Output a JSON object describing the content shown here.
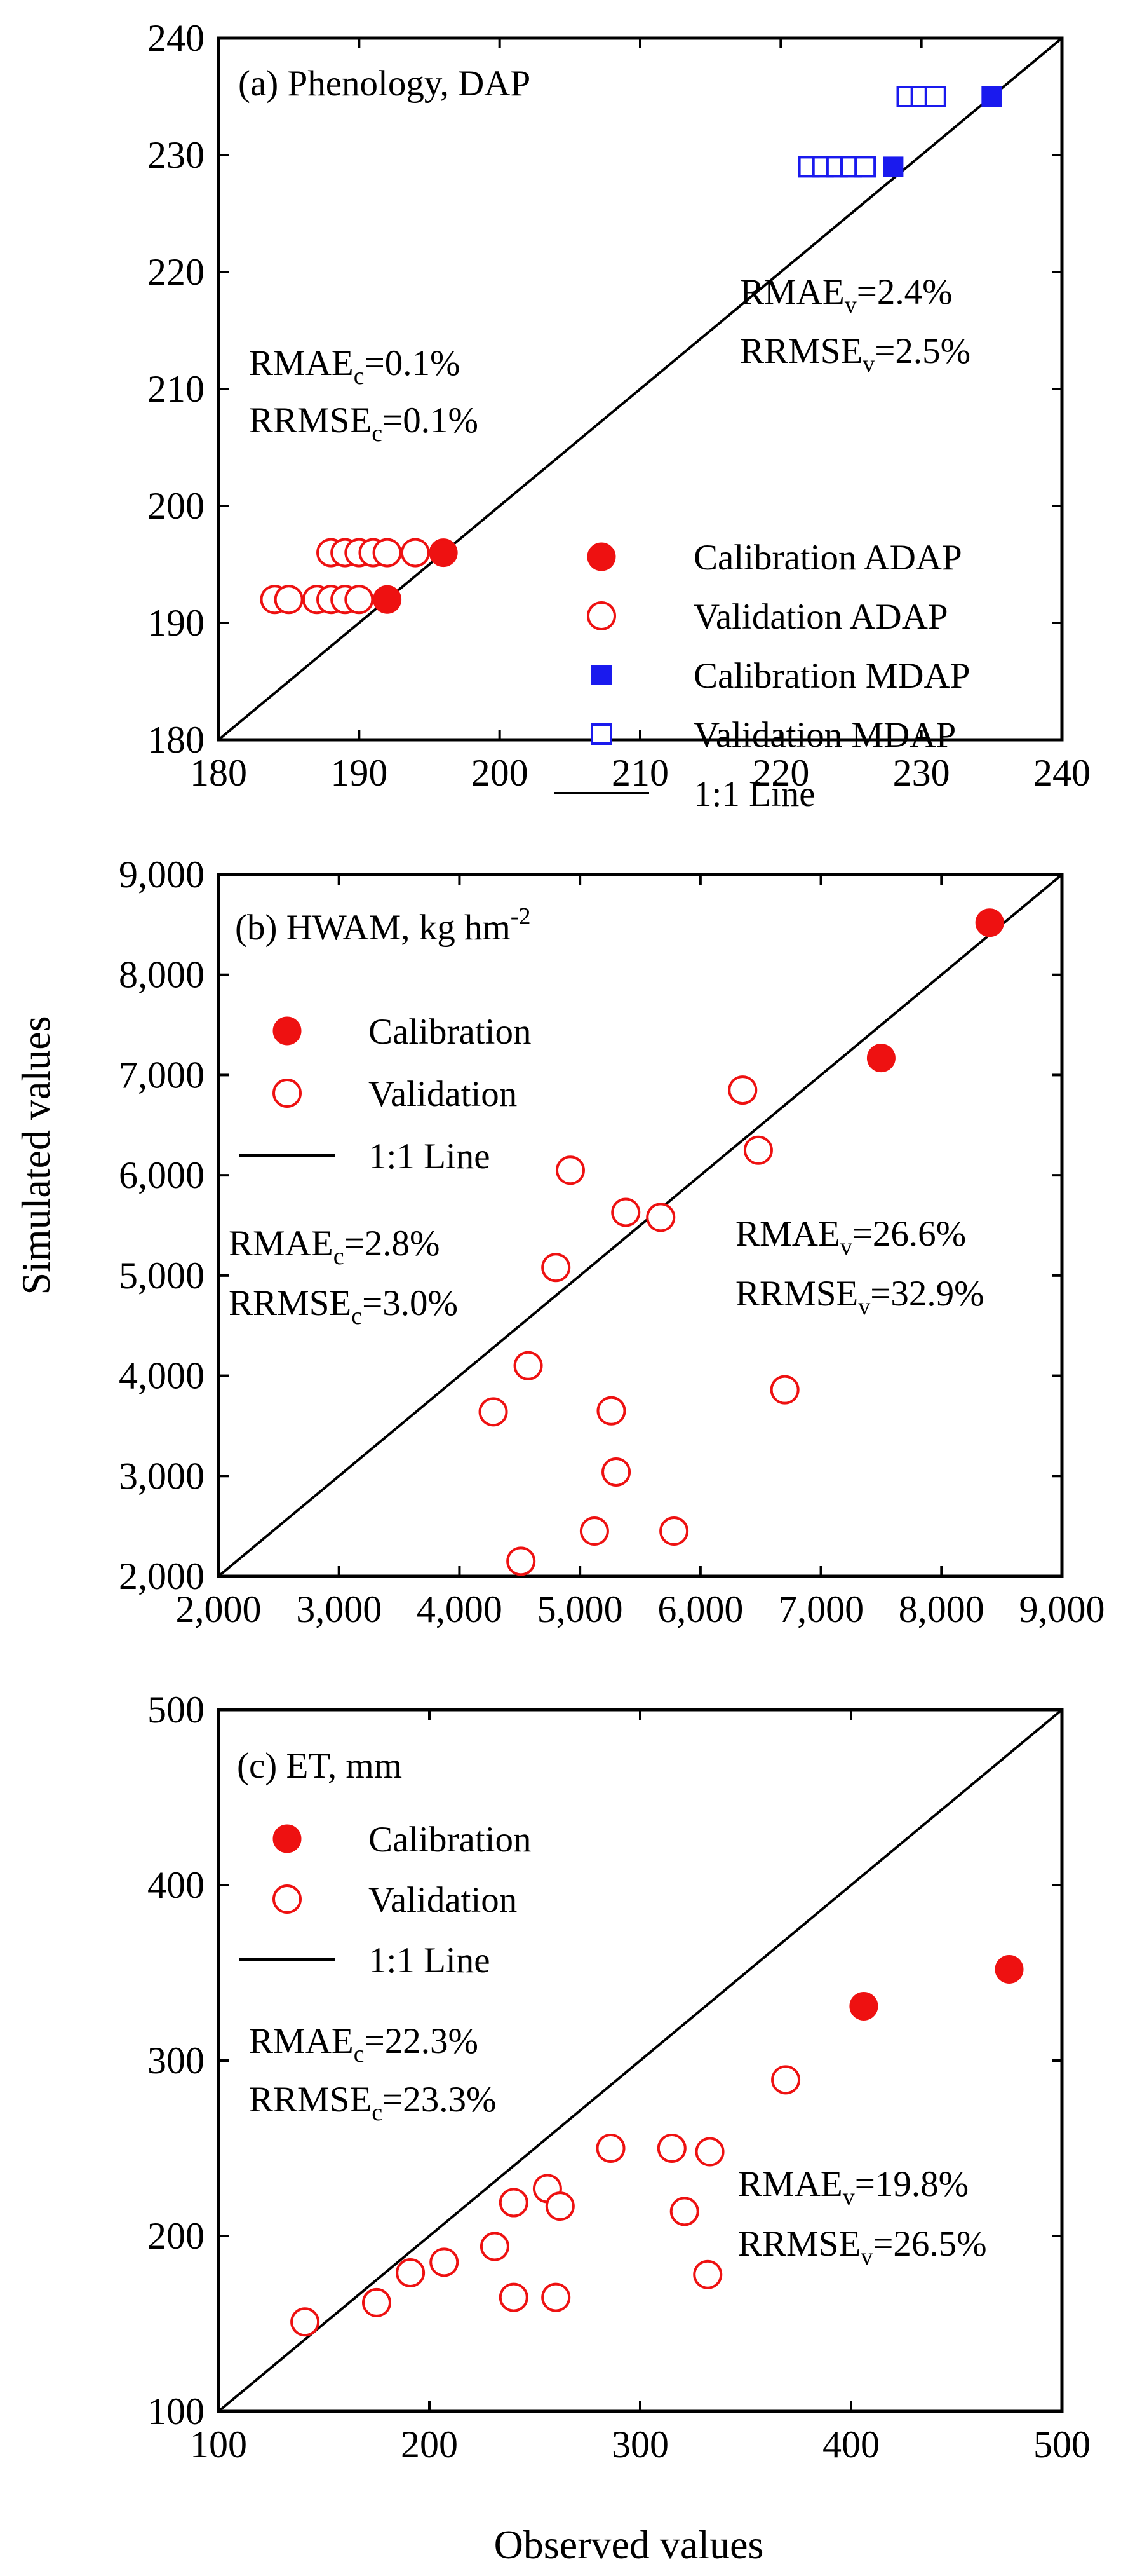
{
  "figure": {
    "ylabel_shared": "Simulated values",
    "xlabel_shared": "Observed values"
  },
  "colors": {
    "red": "#ee1111",
    "blue": "#1a1aee",
    "black": "#000000"
  },
  "chart_data": [
    {
      "type": "scatter",
      "panel": "a",
      "title_prefix": "(a) Phenology, DAP",
      "xlim": [
        180,
        240
      ],
      "ylim": [
        180,
        240
      ],
      "xticks": [
        "180",
        "190",
        "200",
        "210",
        "220",
        "230",
        "240"
      ],
      "yticks": [
        "180",
        "190",
        "200",
        "210",
        "220",
        "230",
        "240"
      ],
      "xtick_values": [
        180,
        190,
        200,
        210,
        220,
        230,
        240
      ],
      "ytick_values": [
        180,
        190,
        200,
        210,
        220,
        230,
        240
      ],
      "stats": {
        "calibration": [
          {
            "pre": "RMAE",
            "sub": "c",
            "post": "=0.1%"
          },
          {
            "pre": "RRMSE",
            "sub": "c",
            "post": "=0.1%"
          }
        ],
        "validation": [
          {
            "pre": "RMAE",
            "sub": "v",
            "post": "=2.4%"
          },
          {
            "pre": "RRMSE",
            "sub": "v",
            "post": "=2.5%"
          }
        ]
      },
      "legend": {
        "position": "bottom-right",
        "entries": [
          {
            "label": "Calibration ADAP",
            "marker": "filled-circle",
            "color": "#ee1111"
          },
          {
            "label": "Validation ADAP",
            "marker": "open-circle",
            "color": "#ee1111"
          },
          {
            "label": "Calibration MDAP",
            "marker": "filled-square",
            "color": "#1a1aee"
          },
          {
            "label": "Validation MDAP",
            "marker": "open-square",
            "color": "#1a1aee"
          },
          {
            "label": "1:1 Line",
            "marker": "line",
            "color": "#000000"
          }
        ]
      },
      "series": [
        {
          "name": "Calibration ADAP",
          "marker": "filled-circle",
          "color": "#ee1111",
          "points": [
            [
              196,
              196
            ],
            [
              192,
              192
            ]
          ]
        },
        {
          "name": "Validation ADAP",
          "marker": "open-circle",
          "color": "#ee1111",
          "points": [
            [
              188,
              196
            ],
            [
              189,
              196
            ],
            [
              190,
              196
            ],
            [
              191,
              196
            ],
            [
              192,
              196
            ],
            [
              194,
              196
            ],
            [
              184,
              192
            ],
            [
              185,
              192
            ],
            [
              187,
              192
            ],
            [
              188,
              192
            ],
            [
              189,
              192
            ],
            [
              190,
              192
            ]
          ]
        },
        {
          "name": "Calibration MDAP",
          "marker": "filled-square",
          "color": "#1a1aee",
          "points": [
            [
              235,
              235
            ],
            [
              228,
              229
            ]
          ]
        },
        {
          "name": "Validation MDAP",
          "marker": "open-square",
          "color": "#1a1aee",
          "points": [
            [
              229,
              235
            ],
            [
              230,
              235
            ],
            [
              231,
              235
            ],
            [
              222,
              229
            ],
            [
              223,
              229
            ],
            [
              224,
              229
            ],
            [
              225,
              229
            ],
            [
              226,
              229
            ]
          ]
        }
      ]
    },
    {
      "type": "scatter",
      "panel": "b",
      "title_prefix": "(b) HWAM, kg hm",
      "title_sup": "-2",
      "xlim": [
        2000,
        9000
      ],
      "ylim": [
        2000,
        9000
      ],
      "xticks": [
        "2,000",
        "3,000",
        "4,000",
        "5,000",
        "6,000",
        "7,000",
        "8,000",
        "9,000"
      ],
      "yticks": [
        "2,000",
        "3,000",
        "4,000",
        "5,000",
        "6,000",
        "7,000",
        "8,000",
        "9,000"
      ],
      "xtick_values": [
        2000,
        3000,
        4000,
        5000,
        6000,
        7000,
        8000,
        9000
      ],
      "ytick_values": [
        2000,
        3000,
        4000,
        5000,
        6000,
        7000,
        8000,
        9000
      ],
      "stats": {
        "calibration": [
          {
            "pre": "RMAE",
            "sub": "c",
            "post": "=2.8%"
          },
          {
            "pre": "RRMSE",
            "sub": "c",
            "post": "=3.0%"
          }
        ],
        "validation": [
          {
            "pre": "RMAE",
            "sub": "v",
            "post": "=26.6%"
          },
          {
            "pre": "RRMSE",
            "sub": "v",
            "post": "=32.9%"
          }
        ]
      },
      "legend": {
        "position": "top-left",
        "entries": [
          {
            "label": "Calibration",
            "marker": "filled-circle",
            "color": "#ee1111"
          },
          {
            "label": "Validation",
            "marker": "open-circle",
            "color": "#ee1111"
          },
          {
            "label": "1:1 Line",
            "marker": "line",
            "color": "#000000"
          }
        ]
      },
      "series": [
        {
          "name": "Calibration",
          "marker": "filled-circle",
          "color": "#ee1111",
          "points": [
            [
              8400,
              8520
            ],
            [
              7500,
              7170
            ]
          ]
        },
        {
          "name": "Validation",
          "marker": "open-circle",
          "color": "#ee1111",
          "points": [
            [
              6350,
              6850
            ],
            [
              6480,
              6250
            ],
            [
              4920,
              6050
            ],
            [
              5380,
              5630
            ],
            [
              5670,
              5580
            ],
            [
              4800,
              5080
            ],
            [
              4570,
              4100
            ],
            [
              4280,
              3640
            ],
            [
              5260,
              3650
            ],
            [
              6700,
              3860
            ],
            [
              5300,
              3040
            ],
            [
              5120,
              2450
            ],
            [
              5780,
              2450
            ],
            [
              4510,
              2150
            ]
          ]
        }
      ]
    },
    {
      "type": "scatter",
      "panel": "c",
      "title_prefix": "(c) ET, mm",
      "xlim": [
        100,
        500
      ],
      "ylim": [
        100,
        500
      ],
      "xticks": [
        "100",
        "200",
        "300",
        "400",
        "500"
      ],
      "yticks": [
        "100",
        "200",
        "300",
        "400",
        "500"
      ],
      "xtick_values": [
        100,
        200,
        300,
        400,
        500
      ],
      "ytick_values": [
        100,
        200,
        300,
        400,
        500
      ],
      "stats": {
        "calibration": [
          {
            "pre": "RMAE",
            "sub": "c",
            "post": "=22.3%"
          },
          {
            "pre": "RRMSE",
            "sub": "c",
            "post": "=23.3%"
          }
        ],
        "validation": [
          {
            "pre": "RMAE",
            "sub": "v",
            "post": "=19.8%"
          },
          {
            "pre": "RRMSE",
            "sub": "v",
            "post": "=26.5%"
          }
        ]
      },
      "legend": {
        "position": "top-left",
        "entries": [
          {
            "label": "Calibration",
            "marker": "filled-circle",
            "color": "#ee1111"
          },
          {
            "label": "Validation",
            "marker": "open-circle",
            "color": "#ee1111"
          },
          {
            "label": "1:1 Line",
            "marker": "line",
            "color": "#000000"
          }
        ]
      },
      "series": [
        {
          "name": "Calibration",
          "marker": "filled-circle",
          "color": "#ee1111",
          "points": [
            [
              475,
              352
            ],
            [
              406,
              331
            ]
          ]
        },
        {
          "name": "Validation",
          "marker": "open-circle",
          "color": "#ee1111",
          "points": [
            [
              369,
              289
            ],
            [
              286,
              250
            ],
            [
              315,
              250
            ],
            [
              333,
              248
            ],
            [
              256,
              227
            ],
            [
              240,
              219
            ],
            [
              262,
              217
            ],
            [
              321,
              214
            ],
            [
              231,
              194
            ],
            [
              207,
              185
            ],
            [
              191,
              179
            ],
            [
              332,
              178
            ],
            [
              240,
              165
            ],
            [
              260,
              165
            ],
            [
              175,
              162
            ],
            [
              141,
              151
            ]
          ]
        }
      ]
    }
  ]
}
